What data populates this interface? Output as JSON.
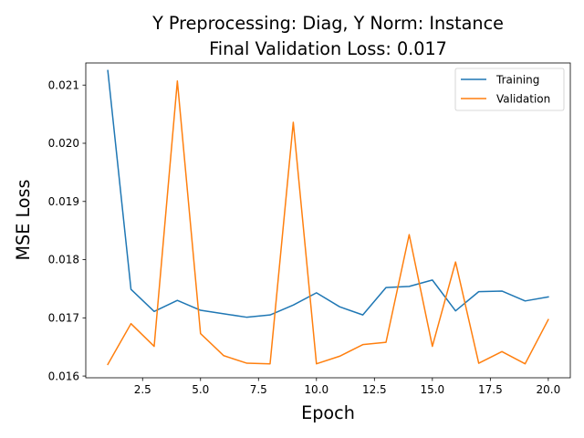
{
  "chart_data": {
    "type": "line",
    "title": "Y Preprocessing: Diag, Y Norm: Instance",
    "subtitle": "Final Validation Loss: 0.017",
    "xlabel": "Epoch",
    "ylabel": "MSE Loss",
    "xlim": [
      0.05,
      20.95
    ],
    "ylim": [
      0.01597,
      0.02138
    ],
    "xticks": [
      2.5,
      5.0,
      7.5,
      10.0,
      12.5,
      15.0,
      17.5,
      20.0
    ],
    "xtick_labels": [
      "2.5",
      "5.0",
      "7.5",
      "10.0",
      "12.5",
      "15.0",
      "17.5",
      "20.0"
    ],
    "yticks": [
      0.016,
      0.017,
      0.018,
      0.019,
      0.02,
      0.021
    ],
    "ytick_labels": [
      "0.016",
      "0.017",
      "0.018",
      "0.019",
      "0.020",
      "0.021"
    ],
    "grid": false,
    "legend_position": "top-right",
    "x": [
      1,
      2,
      3,
      4,
      5,
      6,
      7,
      8,
      9,
      10,
      11,
      12,
      13,
      14,
      15,
      16,
      17,
      18,
      19,
      20
    ],
    "series": [
      {
        "name": "Training",
        "color": "#1f77b4",
        "values": [
          0.02125,
          0.01749,
          0.01711,
          0.0173,
          0.01713,
          0.01707,
          0.01701,
          0.01705,
          0.01722,
          0.01743,
          0.01719,
          0.01705,
          0.01752,
          0.01754,
          0.01765,
          0.01712,
          0.01745,
          0.01746,
          0.01729,
          0.01736
        ]
      },
      {
        "name": "Validation",
        "color": "#ff7f0e",
        "values": [
          0.0162,
          0.0169,
          0.01651,
          0.02107,
          0.01673,
          0.01635,
          0.01622,
          0.01621,
          0.02036,
          0.01621,
          0.01634,
          0.01654,
          0.01658,
          0.01843,
          0.01651,
          0.01796,
          0.01622,
          0.01642,
          0.01621,
          0.01697
        ]
      }
    ]
  }
}
